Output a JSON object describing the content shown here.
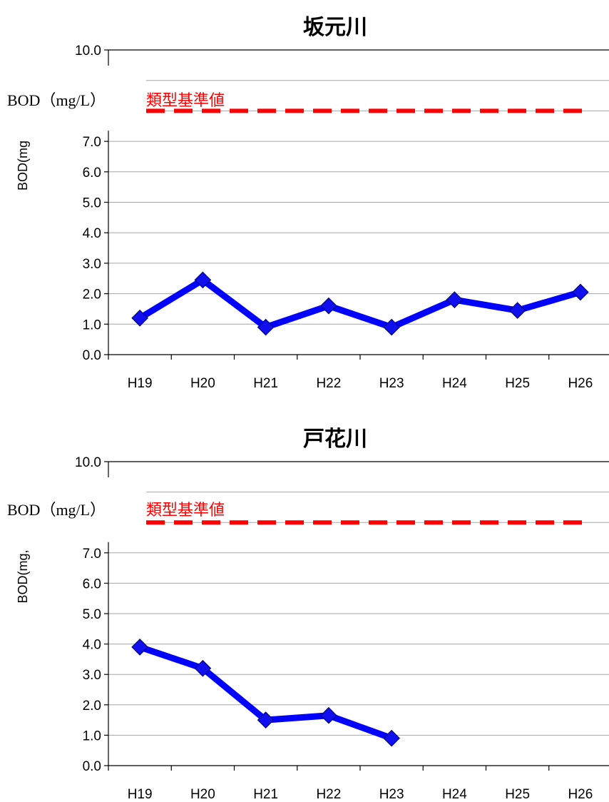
{
  "chart_data": [
    {
      "type": "line",
      "title": "坂元川",
      "ylabel": "BOD(mg",
      "annotation": "BOD（mg/L）",
      "standard_label": "類型基準値",
      "standard_value": 8.0,
      "categories": [
        "H19",
        "H20",
        "H21",
        "H22",
        "H23",
        "H24",
        "H25",
        "H26"
      ],
      "y_ticks": [
        "0.0",
        "1.0",
        "2.0",
        "3.0",
        "4.0",
        "5.0",
        "6.0",
        "7.0",
        "10.0"
      ],
      "ylim": [
        0,
        10
      ],
      "grid": true,
      "series": [
        {
          "values": [
            1.2,
            2.45,
            0.9,
            1.6,
            0.9,
            1.8,
            1.45,
            2.05
          ],
          "color": "#0000ff"
        }
      ]
    },
    {
      "type": "line",
      "title": "戸花川",
      "ylabel": "BOD(mg,",
      "annotation": "BOD（mg/L）",
      "standard_label": "類型基準値",
      "standard_value": 8.0,
      "categories": [
        "H19",
        "H20",
        "H21",
        "H22",
        "H23",
        "H24",
        "H25",
        "H26"
      ],
      "y_ticks": [
        "0.0",
        "1.0",
        "2.0",
        "3.0",
        "4.0",
        "5.0",
        "6.0",
        "7.0",
        "10.0"
      ],
      "ylim": [
        0,
        10
      ],
      "grid": true,
      "series": [
        {
          "values": [
            3.9,
            3.2,
            1.5,
            1.65,
            0.9,
            null,
            null,
            null
          ],
          "color": "#0000ff"
        }
      ]
    }
  ],
  "colors": {
    "line": "#0000ff",
    "marker_fill": "#1010ee",
    "standard": "#ff0000",
    "grid": "#a6a6a6"
  }
}
